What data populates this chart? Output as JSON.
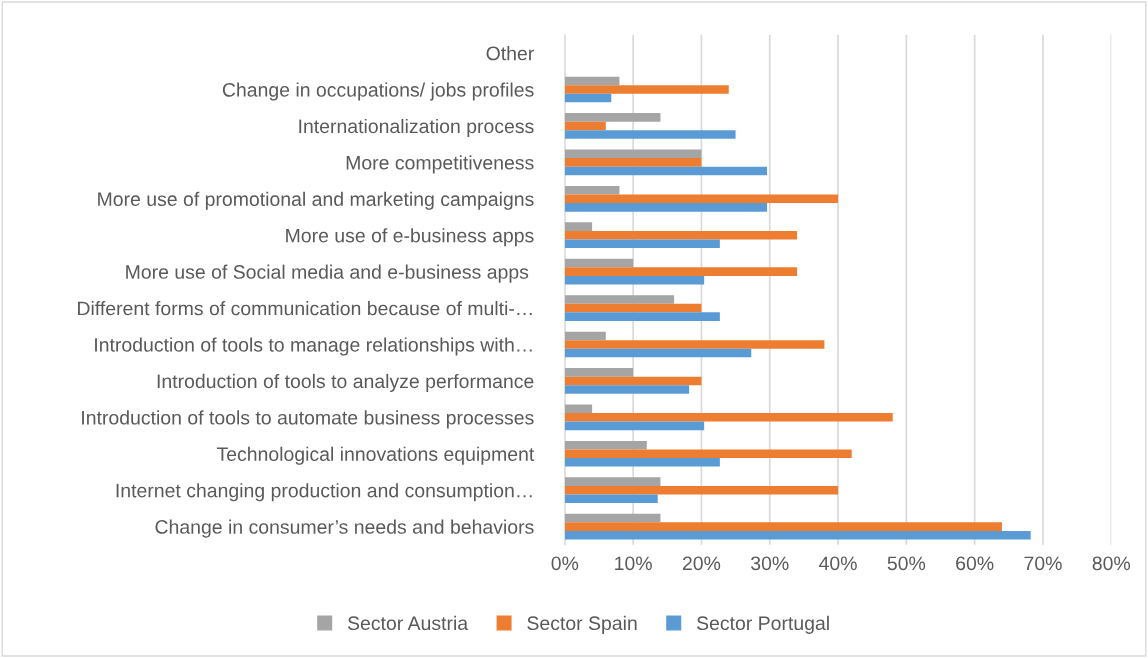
{
  "chart_data": {
    "type": "bar",
    "orientation": "horizontal",
    "categories": [
      "Other",
      "Change in occupations/ jobs profiles",
      "Internationalization process",
      "More competitiveness",
      "More use of promotional and marketing campaigns",
      "More use of e-business apps",
      "More use of Social media and e-business apps ",
      "Different forms of communication because of multi-…",
      "Introduction of tools to manage relationships with…",
      "Introduction of tools to analyze performance",
      "Introduction of tools to automate business processes",
      "Technological innovations equipment",
      "Internet changing production and consumption…",
      "Change in consumer’s needs and behaviors"
    ],
    "series": [
      {
        "name": "Sector Austria",
        "color": "#a5a5a5",
        "values": [
          0,
          8,
          14,
          20,
          8,
          4,
          10,
          16,
          6,
          10,
          4,
          12,
          14,
          14
        ]
      },
      {
        "name": "Sector Spain",
        "color": "#ed7d31",
        "values": [
          0,
          24,
          6,
          20,
          40,
          34,
          34,
          20,
          38,
          20,
          48,
          42,
          40,
          64
        ]
      },
      {
        "name": "Sector Portugal",
        "color": "#5b9bd5",
        "values": [
          0,
          6.8,
          25,
          29.6,
          29.6,
          22.7,
          20.4,
          22.7,
          27.3,
          18.2,
          20.4,
          22.7,
          13.6,
          68.2
        ]
      }
    ],
    "xlim": [
      0,
      80
    ],
    "xticks": [
      {
        "value": 0,
        "label": "0%"
      },
      {
        "value": 10,
        "label": "10%"
      },
      {
        "value": 20,
        "label": "20%"
      },
      {
        "value": 30,
        "label": "30%"
      },
      {
        "value": 40,
        "label": "40%"
      },
      {
        "value": 50,
        "label": "50%"
      },
      {
        "value": 60,
        "label": "60%"
      },
      {
        "value": 70,
        "label": "70%"
      },
      {
        "value": 80,
        "label": "80%"
      }
    ],
    "grid": "x",
    "legend": "bottom"
  }
}
